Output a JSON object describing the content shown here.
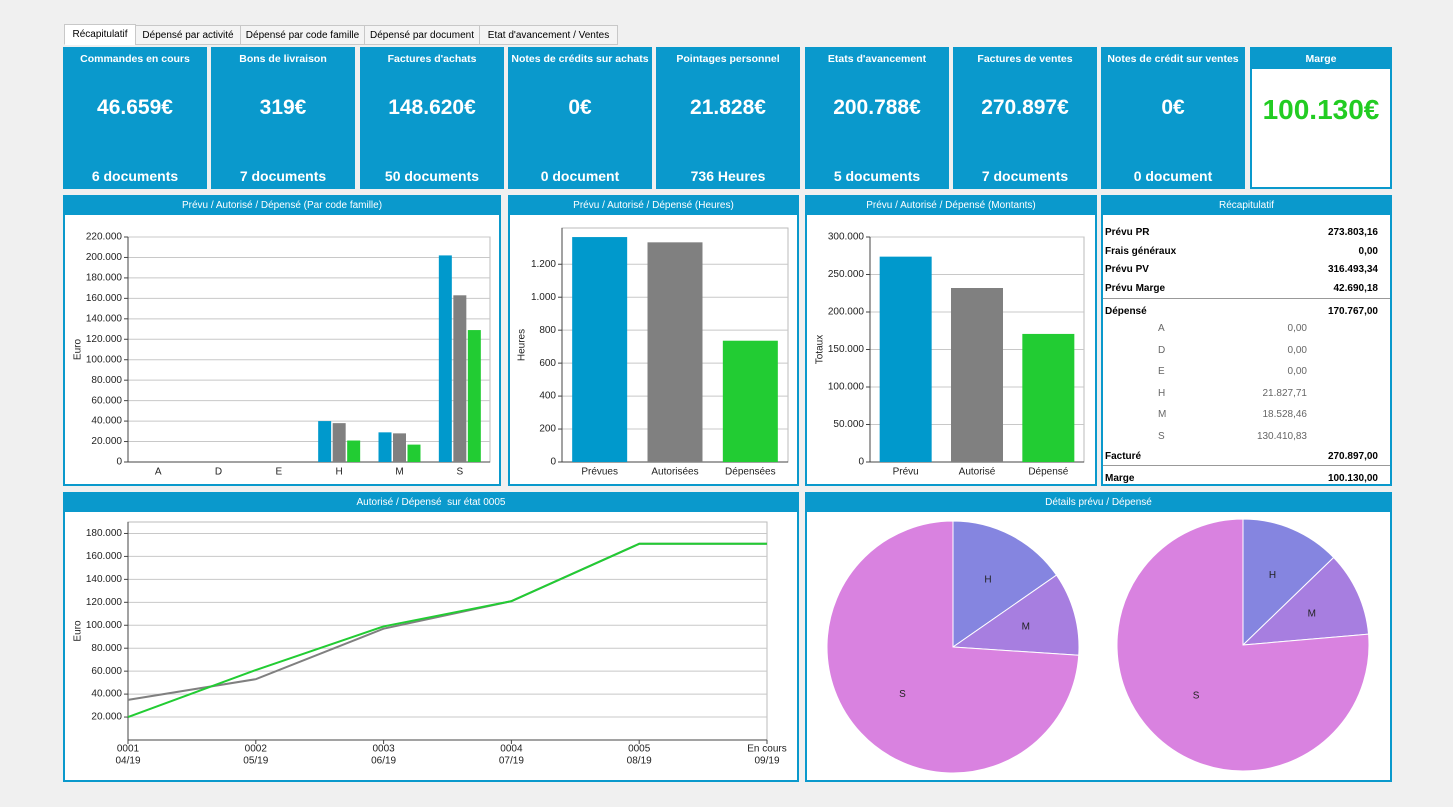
{
  "tabs": [
    "Récapitulatif",
    "Dépensé par activité",
    "Dépensé par code famille",
    "Dépensé par document",
    "Etat d'avancement / Ventes"
  ],
  "active_tab": 0,
  "kpis": [
    {
      "title": "Commandes en cours",
      "value": "46.659€",
      "footer": "6 documents"
    },
    {
      "title": "Bons de livraison",
      "value": "319€",
      "footer": "7 documents"
    },
    {
      "title": "Factures d'achats",
      "value": "148.620€",
      "footer": "50 documents"
    },
    {
      "title": "Notes de crédits sur achats",
      "value": "0€",
      "footer": "0 document"
    },
    {
      "title": "Pointages personnel",
      "value": "21.828€",
      "footer": "736 Heures"
    },
    {
      "title": "Etats d'avancement",
      "value": "200.788€",
      "footer": "5 documents"
    },
    {
      "title": "Factures de ventes",
      "value": "270.897€",
      "footer": "7 documents"
    },
    {
      "title": "Notes de crédit sur ventes",
      "value": "0€",
      "footer": "0 document"
    }
  ],
  "margin_kpi": {
    "title": "Marge",
    "value": "100.130€",
    "color": "#22cc22"
  },
  "chart_data": [
    {
      "type": "bar",
      "title": "Prévu / Autorisé / Dépensé (Par code famille)",
      "y_label": "Euro",
      "categories": [
        "A",
        "D",
        "E",
        "H",
        "M",
        "S"
      ],
      "series": [
        {
          "color": "#0099cc",
          "values": [
            0,
            0,
            0,
            40000,
            29000,
            202000
          ]
        },
        {
          "color": "#808080",
          "values": [
            0,
            0,
            0,
            38000,
            28000,
            163000
          ]
        },
        {
          "color": "#22cc33",
          "values": [
            0,
            0,
            0,
            21000,
            17000,
            129000
          ]
        }
      ],
      "ylim": [
        0,
        220000
      ],
      "yticks": [
        0,
        {
          "value": 20000,
          "label": "20.000"
        },
        {
          "value": 40000,
          "label": "40.000"
        },
        {
          "value": 60000,
          "label": "60.000"
        },
        {
          "value": 80000,
          "label": "80.000"
        },
        {
          "value": 100000,
          "label": "100.000"
        },
        {
          "value": 120000,
          "label": "120.000"
        },
        {
          "value": 140000,
          "label": "140.000"
        },
        {
          "value": 160000,
          "label": "160.000"
        },
        {
          "value": 180000,
          "label": "180.000"
        },
        {
          "value": 200000,
          "label": "200.000"
        },
        {
          "value": 220000,
          "label": "220.000"
        }
      ],
      "grid": true
    },
    {
      "type": "bar",
      "title": "Prévu / Autorisé / Dépensé (Heures)",
      "y_label": "Heures",
      "categories": [
        "Prévues",
        "Autorisées",
        "Dépensées"
      ],
      "values": [
        1365,
        1333,
        736
      ],
      "colors": [
        "#0099cc",
        "#808080",
        "#22cc33"
      ],
      "ylim": [
        0,
        1420
      ],
      "yticks": [
        0,
        200,
        400,
        600,
        800,
        {
          "value": 1000,
          "label": "1.000"
        },
        {
          "value": 1200,
          "label": "1.200"
        }
      ],
      "grid": true
    },
    {
      "type": "bar",
      "title": "Prévu / Autorisé / Dépensé (Montants)",
      "y_label": "Totaux",
      "categories": [
        "Prévu",
        "Autorisé",
        "Dépensé"
      ],
      "values": [
        273803.16,
        232000,
        170767
      ],
      "colors": [
        "#0099cc",
        "#808080",
        "#22cc33"
      ],
      "ylim": [
        0,
        300000
      ],
      "yticks": [
        0,
        {
          "value": 50000,
          "label": "50.000"
        },
        {
          "value": 100000,
          "label": "100.000"
        },
        {
          "value": 150000,
          "label": "150.000"
        },
        {
          "value": 200000,
          "label": "200.000"
        },
        {
          "value": 250000,
          "label": "250.000"
        },
        {
          "value": 300000,
          "label": "300.000"
        }
      ],
      "grid": true
    },
    {
      "type": "line",
      "title": "Autorisé / Dépensé  sur état 0005",
      "y_label": "Euro",
      "categories": [
        "0001",
        "0002",
        "0003",
        "0004",
        "0005",
        "En cours"
      ],
      "periods": [
        "04/19",
        "05/19",
        "06/19",
        "07/19",
        "08/19",
        "09/19"
      ],
      "series": [
        {
          "color": "#808080",
          "values": [
            35000,
            53000,
            97000,
            121000,
            171000,
            171000
          ]
        },
        {
          "color": "#22cc33",
          "values": [
            20000,
            61000,
            99000,
            121000,
            171000,
            171000
          ]
        }
      ],
      "ylim": [
        0,
        190000
      ],
      "yticks": [
        {
          "value": 20000,
          "label": "20.000"
        },
        {
          "value": 40000,
          "label": "40.000"
        },
        {
          "value": 60000,
          "label": "60.000"
        },
        {
          "value": 80000,
          "label": "80.000"
        },
        {
          "value": 100000,
          "label": "100.000"
        },
        {
          "value": 120000,
          "label": "120.000"
        },
        {
          "value": 140000,
          "label": "140.000"
        },
        {
          "value": 160000,
          "label": "160.000"
        },
        {
          "value": 180000,
          "label": "180.000"
        }
      ],
      "grid": true
    },
    {
      "type": "pie",
      "title": "Détails prévu / Dépensé",
      "labels": [
        "H",
        "M",
        "S"
      ],
      "values": [
        42000,
        29300,
        202500
      ],
      "colors": [
        "#8585e0",
        "#a77ee0",
        "#d982e0"
      ]
    },
    {
      "type": "pie",
      "labels": [
        "H",
        "M",
        "S"
      ],
      "values": [
        21827.71,
        18528.46,
        130410.83
      ],
      "colors": [
        "#8585e0",
        "#a77ee0",
        "#d982e0"
      ]
    }
  ],
  "recap": {
    "title": "Récapitulatif",
    "top": [
      {
        "label": "Prévu PR",
        "value": "273.803,16"
      },
      {
        "label": "Frais généraux",
        "value": "0,00"
      },
      {
        "label": "Prévu PV",
        "value": "316.493,34"
      },
      {
        "label": "Prévu Marge",
        "value": "42.690,18"
      }
    ],
    "spent": {
      "label": "Dépensé",
      "value": "170.767,00"
    },
    "details": [
      {
        "label": "A",
        "value": "0,00"
      },
      {
        "label": "D",
        "value": "0,00"
      },
      {
        "label": "E",
        "value": "0,00"
      },
      {
        "label": "H",
        "value": "21.827,71"
      },
      {
        "label": "M",
        "value": "18.528,46"
      },
      {
        "label": "S",
        "value": "130.410,83"
      }
    ],
    "billed": {
      "label": "Facturé",
      "value": "270.897,00"
    },
    "margin": {
      "label": "Marge",
      "value": "100.130,00"
    }
  }
}
